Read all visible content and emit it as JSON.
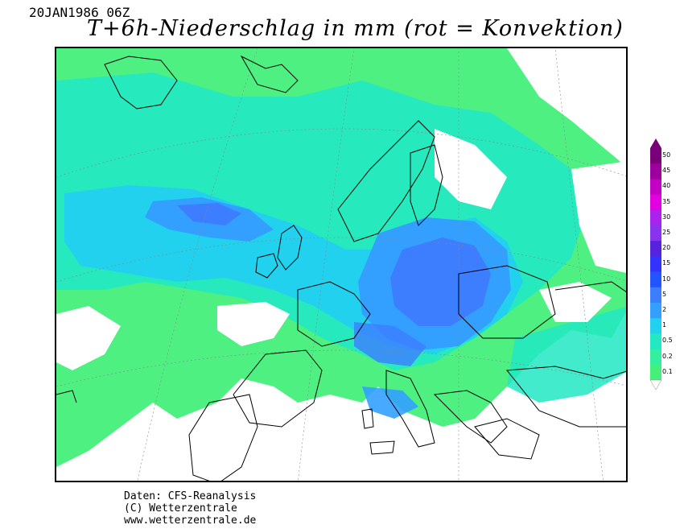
{
  "header": {
    "datetime": "20JAN1986 06Z",
    "title": "T+6h-Niederschlag in mm (rot = Konvektion)"
  },
  "legend": {
    "labels": [
      "50",
      "45",
      "40",
      "35",
      "30",
      "25",
      "20",
      "15",
      "10",
      "5",
      "2",
      "1",
      "0.5",
      "0.2",
      "0.1"
    ],
    "colors": [
      "#7a007a",
      "#9e009e",
      "#c400c4",
      "#e000e0",
      "#aa22ee",
      "#8833ee",
      "#5522dd",
      "#3333ff",
      "#2255ff",
      "#3d7dff",
      "#33a0ff",
      "#22d0f0",
      "#22e8c4",
      "#33f0a0",
      "#44f07a"
    ]
  },
  "credits": {
    "line1": "Daten: CFS-Reanalysis",
    "line2": "(C) Wetterzentrale",
    "line3": "www.wetterzentrale.de"
  }
}
